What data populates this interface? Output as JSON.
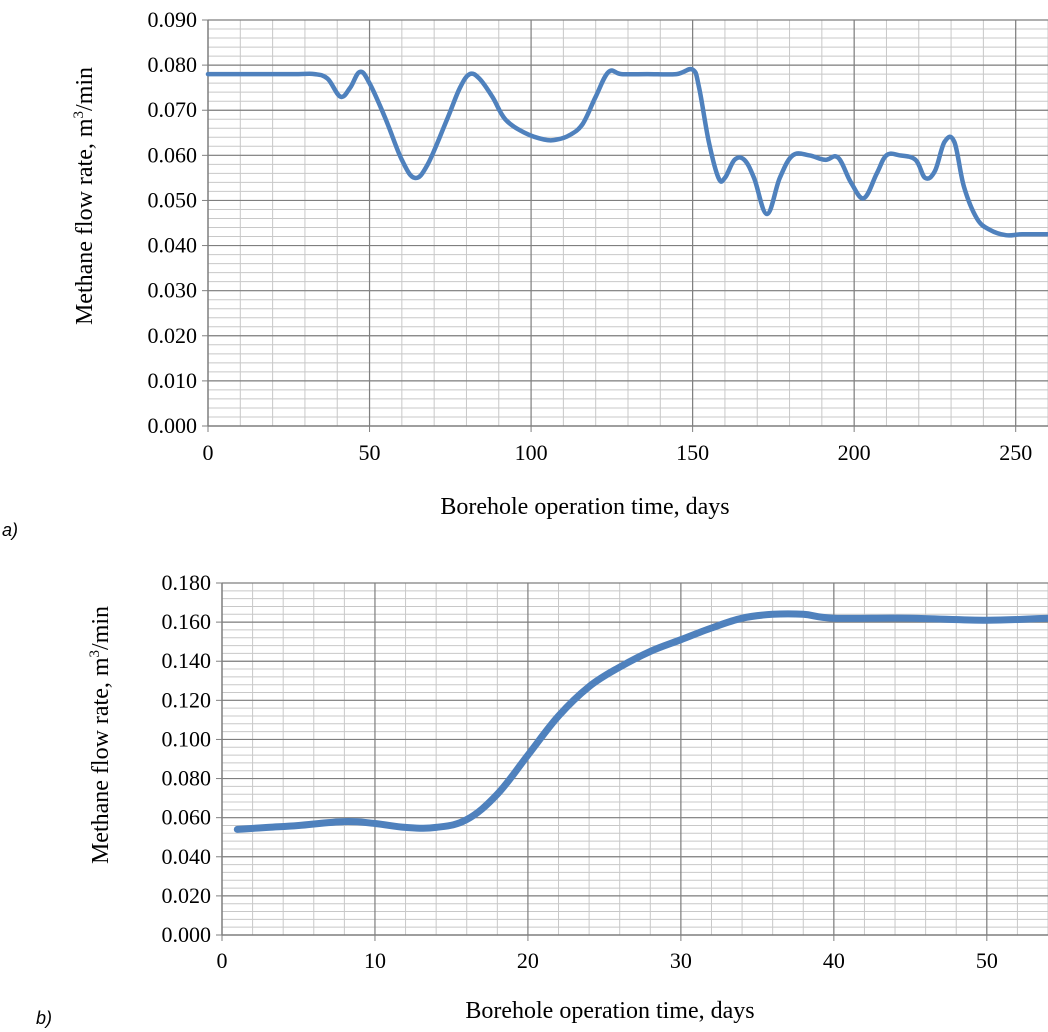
{
  "chart_data": [
    {
      "panel_label": "a)",
      "type": "line",
      "xlabel": "Borehole operation time, days",
      "ylabel_main": "Methane flow rate, m",
      "ylabel_sup": "3",
      "ylabel_tail": "/min",
      "xlim": [
        0,
        260
      ],
      "ylim": [
        0,
        0.09
      ],
      "x_ticks": [
        "0",
        "50",
        "100",
        "150",
        "200",
        "250"
      ],
      "y_ticks": [
        "0.000",
        "0.010",
        "0.020",
        "0.030",
        "0.040",
        "0.050",
        "0.060",
        "0.070",
        "0.080",
        "0.090"
      ],
      "color": "#4f81bd",
      "grid": true,
      "series": [
        {
          "x": [
            0,
            10,
            20,
            28,
            33,
            37,
            41,
            44,
            47,
            50,
            55,
            60,
            64,
            68,
            74,
            78,
            81,
            84,
            88,
            92,
            98,
            104,
            108,
            112,
            116,
            120,
            124,
            128,
            136,
            145,
            150,
            152,
            155,
            158,
            160,
            163,
            166,
            169,
            173,
            177,
            181,
            186,
            191,
            195,
            199,
            203,
            207,
            210,
            214,
            219,
            222,
            225,
            228,
            231,
            234,
            238,
            242,
            247,
            252,
            260
          ],
          "y": [
            0.078,
            0.078,
            0.078,
            0.078,
            0.078,
            0.077,
            0.073,
            0.075,
            0.0785,
            0.076,
            0.068,
            0.059,
            0.055,
            0.058,
            0.068,
            0.075,
            0.078,
            0.077,
            0.073,
            0.068,
            0.065,
            0.0635,
            0.0635,
            0.0645,
            0.067,
            0.073,
            0.0785,
            0.078,
            0.078,
            0.078,
            0.079,
            0.075,
            0.063,
            0.055,
            0.055,
            0.059,
            0.059,
            0.055,
            0.047,
            0.055,
            0.06,
            0.06,
            0.059,
            0.0595,
            0.054,
            0.0505,
            0.056,
            0.06,
            0.06,
            0.059,
            0.055,
            0.0565,
            0.063,
            0.063,
            0.053,
            0.046,
            0.0435,
            0.0423,
            0.0425,
            0.0425
          ]
        }
      ]
    },
    {
      "panel_label": "b)",
      "type": "line",
      "xlabel": "Borehole operation time, days",
      "ylabel_main": "Methane flow rate, m",
      "ylabel_sup": "3",
      "ylabel_tail": "/min",
      "xlim": [
        0,
        54
      ],
      "ylim": [
        0,
        0.18
      ],
      "x_ticks": [
        "0",
        "10",
        "20",
        "30",
        "40",
        "50"
      ],
      "y_ticks": [
        "0.000",
        "0.020",
        "0.040",
        "0.060",
        "0.080",
        "0.100",
        "0.120",
        "0.140",
        "0.160",
        "0.180"
      ],
      "color": "#4f81bd",
      "grid": true,
      "series": [
        {
          "x": [
            1,
            3,
            5,
            8,
            10,
            12,
            14,
            16,
            18,
            20,
            22,
            24,
            26,
            28,
            30,
            32,
            34,
            36,
            38,
            40,
            45,
            50,
            54
          ],
          "y": [
            0.054,
            0.055,
            0.056,
            0.058,
            0.057,
            0.055,
            0.055,
            0.059,
            0.072,
            0.092,
            0.112,
            0.127,
            0.137,
            0.145,
            0.151,
            0.157,
            0.162,
            0.164,
            0.164,
            0.162,
            0.162,
            0.161,
            0.162
          ]
        }
      ]
    }
  ]
}
